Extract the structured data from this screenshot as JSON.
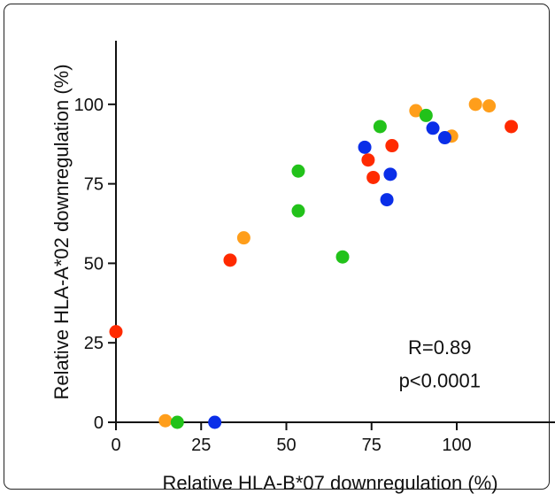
{
  "chart_data": {
    "type": "scatter",
    "xlabel": "Relative HLA-B*07 downregulation (%)",
    "ylabel": "Relative HLA-A*02 downregulation (%)",
    "xlim": [
      0,
      120
    ],
    "ylim": [
      0,
      120
    ],
    "xticks": [
      0,
      25,
      50,
      75,
      100
    ],
    "yticks": [
      0,
      25,
      50,
      75,
      100
    ],
    "grid": false,
    "legend": "none",
    "annotations": [
      "R=0.89",
      "p<0.0001"
    ],
    "colors": {
      "red": "#ff2a00",
      "orange": "#ff9e1b",
      "green": "#22c21a",
      "blue": "#0a2ee8"
    },
    "points": [
      {
        "x": 0,
        "y": 28.5,
        "color": "red"
      },
      {
        "x": 33.5,
        "y": 51,
        "color": "red"
      },
      {
        "x": 74,
        "y": 82.5,
        "color": "red"
      },
      {
        "x": 75.5,
        "y": 77,
        "color": "red"
      },
      {
        "x": 81,
        "y": 87,
        "color": "red"
      },
      {
        "x": 116,
        "y": 93,
        "color": "red"
      },
      {
        "x": 14.5,
        "y": 0.5,
        "color": "orange"
      },
      {
        "x": 37.5,
        "y": 58,
        "color": "orange"
      },
      {
        "x": 88,
        "y": 98,
        "color": "orange"
      },
      {
        "x": 98.5,
        "y": 90,
        "color": "orange"
      },
      {
        "x": 105.5,
        "y": 100,
        "color": "orange"
      },
      {
        "x": 109.5,
        "y": 99.5,
        "color": "orange"
      },
      {
        "x": 18,
        "y": 0,
        "color": "green"
      },
      {
        "x": 53.5,
        "y": 79,
        "color": "green"
      },
      {
        "x": 53.5,
        "y": 66.5,
        "color": "green"
      },
      {
        "x": 66.5,
        "y": 52,
        "color": "green"
      },
      {
        "x": 77.5,
        "y": 93,
        "color": "green"
      },
      {
        "x": 91,
        "y": 96.5,
        "color": "green"
      },
      {
        "x": 29,
        "y": 0,
        "color": "blue"
      },
      {
        "x": 73,
        "y": 86.5,
        "color": "blue"
      },
      {
        "x": 79.5,
        "y": 70,
        "color": "blue"
      },
      {
        "x": 80.5,
        "y": 78,
        "color": "blue"
      },
      {
        "x": 93,
        "y": 92.5,
        "color": "blue"
      },
      {
        "x": 96.5,
        "y": 89.5,
        "color": "blue"
      }
    ]
  }
}
